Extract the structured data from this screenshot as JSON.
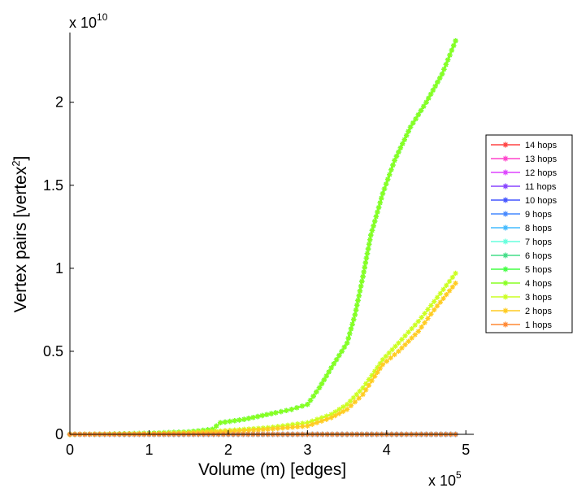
{
  "chart_data": {
    "type": "line",
    "xlabel": "Volume (m) [edges]",
    "ylabel": "Vertex pairs [vertex",
    "ylabel_sup": "2",
    "ylabel_end": "]",
    "x_multiplier_base": "x 10",
    "x_multiplier_exp": "5",
    "y_multiplier_base": "x 10",
    "y_multiplier_exp": "10",
    "xlim": [
      0,
      5.1
    ],
    "ylim": [
      0,
      2.42
    ],
    "x_ticks": [
      0,
      1,
      2,
      3,
      4,
      5
    ],
    "x_tick_labels": [
      "0",
      "1",
      "2",
      "3",
      "4",
      "5"
    ],
    "y_ticks": [
      0,
      0.5,
      1,
      1.5,
      2
    ],
    "y_tick_labels": [
      "0",
      "0.5",
      "1",
      "1.5",
      "2"
    ],
    "grid": false,
    "legend_position": "right",
    "series": [
      {
        "name": "14 hops",
        "color": "#ff4444",
        "x": [
          0,
          0.5,
          1,
          1.5,
          2,
          2.5,
          3,
          3.5,
          4,
          4.5,
          4.87
        ],
        "y": [
          0,
          0,
          0,
          0,
          0,
          0,
          0,
          0,
          0,
          0,
          0
        ]
      },
      {
        "name": "13 hops",
        "color": "#ff44cc",
        "x": [
          0,
          0.5,
          1,
          1.5,
          2,
          2.5,
          3,
          3.5,
          4,
          4.5,
          4.87
        ],
        "y": [
          0,
          0,
          0,
          0,
          0,
          0,
          0,
          0,
          0,
          0,
          0
        ]
      },
      {
        "name": "12 hops",
        "color": "#dd44ff",
        "x": [
          0,
          0.5,
          1,
          1.5,
          2,
          2.5,
          3,
          3.5,
          4,
          4.5,
          4.87
        ],
        "y": [
          0,
          0,
          0,
          0,
          0,
          0,
          0,
          0,
          0,
          0,
          0
        ]
      },
      {
        "name": "11 hops",
        "color": "#8844ff",
        "x": [
          0,
          0.5,
          1,
          1.5,
          2,
          2.5,
          3,
          3.5,
          4,
          4.5,
          4.87
        ],
        "y": [
          0,
          0,
          0,
          0,
          0,
          0,
          0,
          0,
          0,
          0,
          0
        ]
      },
      {
        "name": "10 hops",
        "color": "#4455ff",
        "x": [
          0,
          0.5,
          1,
          1.5,
          2,
          2.5,
          3,
          3.5,
          4,
          4.5,
          4.87
        ],
        "y": [
          0,
          0,
          0,
          0,
          0,
          0,
          0,
          0,
          0,
          0,
          0
        ]
      },
      {
        "name": "9 hops",
        "color": "#4488ff",
        "x": [
          0,
          0.5,
          1,
          1.5,
          2,
          2.5,
          3,
          3.5,
          4,
          4.5,
          4.87
        ],
        "y": [
          0,
          0,
          0,
          0,
          0,
          0,
          0,
          0,
          0,
          0,
          0
        ]
      },
      {
        "name": "8 hops",
        "color": "#44bbff",
        "x": [
          0,
          0.5,
          1,
          1.5,
          2,
          2.5,
          3,
          3.5,
          4,
          4.5,
          4.87
        ],
        "y": [
          0,
          0,
          0,
          0,
          0,
          0,
          0,
          0,
          0,
          0,
          0
        ]
      },
      {
        "name": "7 hops",
        "color": "#66ffdd",
        "x": [
          0,
          0.5,
          1,
          1.5,
          2,
          2.5,
          3,
          3.5,
          4,
          4.5,
          4.87
        ],
        "y": [
          0,
          0,
          0,
          0,
          0,
          0,
          0,
          0,
          0,
          0,
          0
        ]
      },
      {
        "name": "6 hops",
        "color": "#44dd88",
        "x": [
          0,
          0.5,
          1,
          1.5,
          1.8,
          1.9,
          2.2,
          2.6,
          2.8,
          3.0,
          3.15,
          3.3,
          3.5,
          3.6,
          3.7,
          3.8,
          3.95,
          4.1,
          4.3,
          4.5,
          4.7,
          4.87
        ],
        "y": [
          0,
          0.002,
          0.006,
          0.015,
          0.03,
          0.07,
          0.09,
          0.13,
          0.15,
          0.18,
          0.28,
          0.4,
          0.55,
          0.72,
          0.95,
          1.2,
          1.45,
          1.65,
          1.85,
          2.0,
          2.17,
          2.37
        ]
      },
      {
        "name": "5 hops",
        "color": "#44ff44",
        "x": [
          0,
          0.5,
          1,
          1.5,
          1.8,
          1.9,
          2.2,
          2.6,
          2.8,
          3.0,
          3.15,
          3.3,
          3.5,
          3.6,
          3.7,
          3.8,
          3.95,
          4.1,
          4.3,
          4.5,
          4.7,
          4.87
        ],
        "y": [
          0,
          0.002,
          0.006,
          0.015,
          0.03,
          0.07,
          0.09,
          0.13,
          0.15,
          0.18,
          0.28,
          0.4,
          0.55,
          0.72,
          0.95,
          1.2,
          1.45,
          1.65,
          1.85,
          2.0,
          2.17,
          2.37
        ]
      },
      {
        "name": "4 hops",
        "color": "#88ff22",
        "x": [
          0,
          0.5,
          1,
          1.5,
          1.8,
          1.9,
          2.2,
          2.6,
          2.8,
          3.0,
          3.15,
          3.3,
          3.5,
          3.6,
          3.7,
          3.8,
          3.95,
          4.1,
          4.3,
          4.5,
          4.7,
          4.87
        ],
        "y": [
          0,
          0.002,
          0.006,
          0.015,
          0.03,
          0.07,
          0.09,
          0.13,
          0.15,
          0.18,
          0.28,
          0.4,
          0.55,
          0.72,
          0.95,
          1.2,
          1.45,
          1.65,
          1.85,
          2.0,
          2.17,
          2.37
        ]
      },
      {
        "name": "3 hops",
        "color": "#ccff22",
        "x": [
          0,
          0.5,
          1,
          1.5,
          1.9,
          2.5,
          3.0,
          3.3,
          3.5,
          3.7,
          3.85,
          3.95,
          4.15,
          4.4,
          4.6,
          4.87
        ],
        "y": [
          0,
          0.001,
          0.004,
          0.01,
          0.02,
          0.04,
          0.07,
          0.12,
          0.18,
          0.28,
          0.38,
          0.45,
          0.55,
          0.68,
          0.8,
          0.97
        ]
      },
      {
        "name": "2 hops",
        "color": "#ffcc22",
        "x": [
          0,
          0.5,
          1,
          1.5,
          1.9,
          2.5,
          3.0,
          3.3,
          3.5,
          3.7,
          3.85,
          3.95,
          4.15,
          4.4,
          4.6,
          4.87
        ],
        "y": [
          0,
          0.001,
          0.003,
          0.008,
          0.015,
          0.03,
          0.05,
          0.1,
          0.15,
          0.24,
          0.35,
          0.42,
          0.5,
          0.62,
          0.75,
          0.91
        ]
      },
      {
        "name": "1 hops",
        "color": "#ff8833",
        "x": [
          0,
          0.5,
          1,
          1.5,
          2,
          2.5,
          3,
          3.5,
          4,
          4.5,
          4.87
        ],
        "y": [
          0,
          0,
          0,
          0,
          0,
          0,
          0,
          0,
          0,
          0,
          0
        ]
      }
    ]
  }
}
